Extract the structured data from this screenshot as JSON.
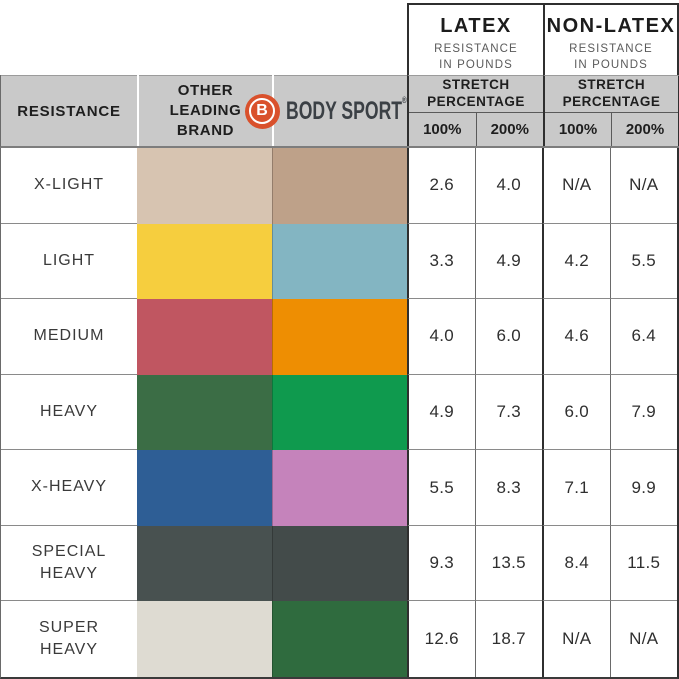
{
  "header": {
    "latex": {
      "title": "LATEX",
      "subtitle": "RESISTANCE\nIN POUNDS"
    },
    "non_latex": {
      "title": "NON-LATEX",
      "subtitle": "RESISTANCE\nIN POUNDS"
    },
    "resistance_label": "RESISTANCE",
    "other_brand_label": "OTHER\nLEADING\nBRAND",
    "brand": {
      "initial": "B",
      "name": "BODY SPORT",
      "registered": "®"
    },
    "stretch_label": "STRETCH\nPERCENTAGE",
    "pct_100": "100%",
    "pct_200": "200%"
  },
  "colors": {
    "brand_orange": "#d9512c",
    "header_gray": "#c9c9c9",
    "border_dark": "#2f2f2f",
    "grid_line": "#8a8a8a"
  },
  "rows": [
    {
      "label": "X-LIGHT",
      "other_color": "#d7c4b1",
      "bodysport_color": "#bea189",
      "latex_100": "2.6",
      "latex_200": "4.0",
      "non_latex_100": "N/A",
      "non_latex_200": "N/A"
    },
    {
      "label": "LIGHT",
      "other_color": "#f6ce3e",
      "bodysport_color": "#83b5c2",
      "latex_100": "3.3",
      "latex_200": "4.9",
      "non_latex_100": "4.2",
      "non_latex_200": "5.5"
    },
    {
      "label": "MEDIUM",
      "other_color": "#c05661",
      "bodysport_color": "#ee8e02",
      "latex_100": "4.0",
      "latex_200": "6.0",
      "non_latex_100": "4.6",
      "non_latex_200": "6.4"
    },
    {
      "label": "HEAVY",
      "other_color": "#3b6d45",
      "bodysport_color": "#0f9a4e",
      "latex_100": "4.9",
      "latex_200": "7.3",
      "non_latex_100": "6.0",
      "non_latex_200": "7.9"
    },
    {
      "label": "X-HEAVY",
      "other_color": "#2e5e95",
      "bodysport_color": "#c583bb",
      "latex_100": "5.5",
      "latex_200": "8.3",
      "non_latex_100": "7.1",
      "non_latex_200": "9.9"
    },
    {
      "label": "SPECIAL\nHEAVY",
      "other_color": "#485150",
      "bodysport_color": "#434b4a",
      "latex_100": "9.3",
      "latex_200": "13.5",
      "non_latex_100": "8.4",
      "non_latex_200": "11.5"
    },
    {
      "label": "SUPER\nHEAVY",
      "other_color": "#dedbd2",
      "bodysport_color": "#2f6b3e",
      "latex_100": "12.6",
      "latex_200": "18.7",
      "non_latex_100": "N/A",
      "non_latex_200": "N/A"
    }
  ],
  "chart_data": {
    "type": "table",
    "columns": [
      "RESISTANCE",
      "OTHER LEADING BRAND",
      "BODY SPORT",
      "LATEX STRETCH 100%",
      "LATEX STRETCH 200%",
      "NON-LATEX STRETCH 100%",
      "NON-LATEX STRETCH 200%"
    ],
    "units": "RESISTANCE IN POUNDS",
    "rows": [
      [
        "X-LIGHT",
        "#d7c4b1",
        "#bea189",
        "2.6",
        "4.0",
        "N/A",
        "N/A"
      ],
      [
        "LIGHT",
        "#f6ce3e",
        "#83b5c2",
        "3.3",
        "4.9",
        "4.2",
        "5.5"
      ],
      [
        "MEDIUM",
        "#c05661",
        "#ee8e02",
        "4.0",
        "6.0",
        "4.6",
        "6.4"
      ],
      [
        "HEAVY",
        "#3b6d45",
        "#0f9a4e",
        "4.9",
        "7.3",
        "6.0",
        "7.9"
      ],
      [
        "X-HEAVY",
        "#2e5e95",
        "#c583bb",
        "5.5",
        "8.3",
        "7.1",
        "9.9"
      ],
      [
        "SPECIAL HEAVY",
        "#485150",
        "#434b4a",
        "9.3",
        "13.5",
        "8.4",
        "11.5"
      ],
      [
        "SUPER HEAVY",
        "#dedbd2",
        "#2f6b3e",
        "12.6",
        "18.7",
        "N/A",
        "N/A"
      ]
    ]
  }
}
